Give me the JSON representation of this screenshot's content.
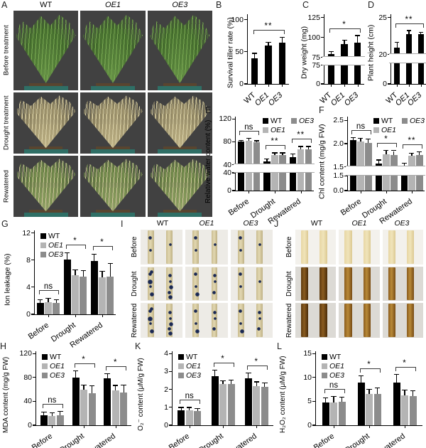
{
  "figure": {
    "genotypes": [
      {
        "label": "WT",
        "color": "#000000",
        "italic": false
      },
      {
        "label": "OE1",
        "color": "#b4b4b4",
        "italic": true
      },
      {
        "label": "OE3",
        "color": "#8c8c8c",
        "italic": true
      }
    ],
    "conditions": [
      "Before",
      "Drought",
      "Rewatered"
    ]
  },
  "panels": {
    "A": {
      "label": "A",
      "col_headers": [
        "WT",
        "OE1",
        "OE3"
      ],
      "row_labels": [
        "Before treatment",
        "Drought treatment",
        "Rewatered"
      ],
      "row_styles": [
        "green",
        "dry",
        "rew"
      ]
    },
    "B": {
      "label": "B"
    },
    "C": {
      "label": "C"
    },
    "D": {
      "label": "D"
    },
    "E": {
      "label": "E"
    },
    "F": {
      "label": "F"
    },
    "G": {
      "label": "G"
    },
    "H": {
      "label": "H"
    },
    "I": {
      "label": "I",
      "col_headers": [
        "WT",
        "OE1",
        "OE3"
      ],
      "row_labels": [
        "Before",
        "Drought",
        "Rewatered"
      ],
      "stain_levels": [
        [
          1,
          1,
          1
        ],
        [
          3,
          2,
          1
        ],
        [
          3,
          2,
          2
        ]
      ]
    },
    "J": {
      "label": "J",
      "col_headers": [
        "WT",
        "OE1",
        "OE3"
      ],
      "row_labels": [
        "Before",
        "Drought",
        "Rewatered"
      ],
      "stain_levels": [
        [
          0,
          0,
          0
        ],
        [
          3,
          2,
          2
        ],
        [
          3,
          2,
          2
        ]
      ]
    },
    "K": {
      "label": "K"
    },
    "L": {
      "label": "L"
    }
  },
  "chart_data": [
    {
      "panel": "B",
      "type": "bar",
      "ylabel": "Survival tiller rate (%)",
      "categories": [
        "WT",
        "OE1",
        "OE3"
      ],
      "cat_italic": [
        false,
        true,
        true
      ],
      "series": [
        {
          "name": "",
          "color": "#000000",
          "values": [
            40,
            60,
            64
          ],
          "errors": [
            7,
            4,
            8
          ]
        }
      ],
      "ymap": [
        [
          0,
          0
        ],
        [
          100,
          0.92
        ]
      ],
      "yticks": [
        {
          "label": "0",
          "v": 0
        },
        {
          "label": "50",
          "v": 50
        },
        {
          "label": "100",
          "v": 100
        }
      ],
      "annotations": [
        {
          "span": "all",
          "text": "**"
        }
      ]
    },
    {
      "panel": "C",
      "type": "bar",
      "ylabel": "Dry weight (mg)",
      "categories": [
        "WT",
        "OE1",
        "OE3"
      ],
      "cat_italic": [
        false,
        true,
        true
      ],
      "series": [
        {
          "name": "",
          "color": "#000000",
          "values": [
            79,
            92,
            94
          ],
          "errors": [
            3,
            4,
            8
          ]
        }
      ],
      "ymap": [
        [
          0,
          0
        ],
        [
          75,
          0.27
        ],
        [
          75,
          0.38
        ],
        [
          125,
          0.95
        ]
      ],
      "break_f": [
        0.27,
        0.38
      ],
      "yticks": [
        {
          "label": "0",
          "v": 0
        },
        {
          "label": "75",
          "f": 0.27
        },
        {
          "label": "75",
          "f": 0.38
        },
        {
          "label": "100",
          "v": 100
        },
        {
          "label": "125",
          "v": 125
        }
      ],
      "annotations": [
        {
          "span": "all",
          "text": "*"
        }
      ]
    },
    {
      "panel": "D",
      "type": "bar",
      "ylabel": "Plant height (cm)",
      "categories": [
        "WT",
        "OE1",
        "OE3"
      ],
      "cat_italic": [
        false,
        true,
        true
      ],
      "series": [
        {
          "name": "",
          "color": "#000000",
          "values": [
            21,
            22.8,
            22.8
          ],
          "errors": [
            0.6,
            0.4,
            0.2
          ]
        }
      ],
      "ymap": [
        [
          0,
          0
        ],
        [
          20,
          0.3
        ],
        [
          20,
          0.42
        ],
        [
          25,
          0.95
        ]
      ],
      "break_f": [
        0.3,
        0.42
      ],
      "yticks": [
        {
          "label": "0",
          "v": 0
        },
        {
          "label": "20",
          "f": 0.42
        },
        {
          "label": "25",
          "v": 25
        }
      ],
      "annotations": [
        {
          "span": "all",
          "text": "**"
        }
      ]
    },
    {
      "panel": "E",
      "type": "bar",
      "ylabel": "Relative water content (%)",
      "categories": [
        "Before",
        "Drought",
        "Rewatered"
      ],
      "series": [
        {
          "name": "WT",
          "values": [
            80,
            46,
            53
          ],
          "errors": [
            2,
            3,
            5
          ]
        },
        {
          "name": "OE1",
          "values": [
            82,
            57,
            67
          ],
          "errors": [
            3,
            3,
            4
          ]
        },
        {
          "name": "OE3",
          "values": [
            79,
            57,
            67
          ],
          "errors": [
            2,
            3,
            4
          ]
        }
      ],
      "ymap": [
        [
          0,
          0
        ],
        [
          40,
          0.24
        ],
        [
          40,
          0.35
        ],
        [
          120,
          0.97
        ]
      ],
      "break_f": [
        0.24,
        0.35
      ],
      "yticks": [
        {
          "label": "0",
          "v": 0
        },
        {
          "label": "40",
          "f": 0.24
        },
        {
          "label": "40",
          "f": 0.35
        },
        {
          "label": "80",
          "v": 80
        },
        {
          "label": "120",
          "v": 120
        }
      ],
      "annotations": [
        {
          "group": 0,
          "text": "ns"
        },
        {
          "group": 1,
          "text": "**"
        },
        {
          "group": 2,
          "text": "**"
        }
      ],
      "legend": {
        "mode": "grid2",
        "items": [
          "WT",
          "OE3",
          "OE1"
        ]
      }
    },
    {
      "panel": "F",
      "type": "bar",
      "ylabel": "Chl content (mg/g FW)",
      "categories": [
        "Before",
        "Drought",
        "Rewatered"
      ],
      "series": [
        {
          "name": "WT",
          "values": [
            2.07,
            1.58,
            1.53
          ],
          "errors": [
            0.05,
            0.06,
            0.04
          ]
        },
        {
          "name": "OE1",
          "values": [
            2.05,
            1.77,
            1.74
          ],
          "errors": [
            0.06,
            0.07,
            0.04
          ]
        },
        {
          "name": "OE3",
          "values": [
            2.02,
            1.76,
            1.76
          ],
          "errors": [
            0.07,
            0.08,
            0.05
          ]
        }
      ],
      "ymap": [
        [
          0,
          0
        ],
        [
          1.5,
          0.2
        ],
        [
          1.5,
          0.32
        ],
        [
          2.5,
          0.95
        ]
      ],
      "break_f": [
        0.2,
        0.32
      ],
      "yticks": [
        {
          "label": "0.0",
          "v": 0
        },
        {
          "label": "1.5",
          "f": 0.2
        },
        {
          "label": "1.5",
          "f": 0.32
        },
        {
          "label": "2.0",
          "v": 2.0
        },
        {
          "label": "2.5",
          "v": 2.5
        }
      ],
      "annotations": [
        {
          "group": 0,
          "text": "ns"
        },
        {
          "group": 1,
          "text": "*"
        },
        {
          "group": 2,
          "text": "**"
        }
      ],
      "legend": {
        "mode": "grid2",
        "items": [
          "WT",
          "OE3",
          "OE1"
        ]
      }
    },
    {
      "panel": "G",
      "type": "bar",
      "ylabel": "Ion leakage (%)",
      "categories": [
        "Before",
        "Drought",
        "Rewatered"
      ],
      "series": [
        {
          "name": "WT",
          "values": [
            1.7,
            8.1,
            7.9
          ],
          "errors": [
            0.4,
            0.9,
            0.9
          ]
        },
        {
          "name": "OE1",
          "values": [
            1.8,
            5.8,
            5.5
          ],
          "errors": [
            0.5,
            0.7,
            0.8
          ]
        },
        {
          "name": "OE3",
          "values": [
            1.7,
            5.6,
            5.6
          ],
          "errors": [
            0.4,
            0.8,
            1.8
          ]
        }
      ],
      "ymap": [
        [
          0,
          0
        ],
        [
          12,
          0.97
        ]
      ],
      "yticks": [
        {
          "label": "0",
          "v": 0
        },
        {
          "label": "4",
          "v": 4
        },
        {
          "label": "8",
          "v": 8
        },
        {
          "label": "12",
          "v": 12
        }
      ],
      "annotations": [
        {
          "group": 0,
          "text": "ns"
        },
        {
          "group": 1,
          "text": "*"
        },
        {
          "group": 2,
          "text": "*"
        }
      ],
      "legend": {
        "mode": "stack",
        "items": [
          "WT",
          "OE1",
          "OE3"
        ]
      }
    },
    {
      "panel": "H",
      "type": "bar",
      "ylabel": "MDA content (mg/g FW)",
      "categories": [
        "Before",
        "Drought",
        "Rewatered"
      ],
      "series": [
        {
          "name": "WT",
          "values": [
            17,
            80,
            78
          ],
          "errors": [
            4,
            10,
            8
          ]
        },
        {
          "name": "OE1",
          "values": [
            15,
            60,
            58
          ],
          "errors": [
            5,
            7,
            8
          ]
        },
        {
          "name": "OE3",
          "values": [
            17,
            53,
            55
          ],
          "errors": [
            6,
            12,
            12
          ]
        }
      ],
      "ymap": [
        [
          0,
          0
        ],
        [
          120,
          0.97
        ]
      ],
      "yticks": [
        {
          "label": "0",
          "v": 0
        },
        {
          "label": "40",
          "v": 40
        },
        {
          "label": "80",
          "v": 80
        },
        {
          "label": "120",
          "v": 120
        }
      ],
      "annotations": [
        {
          "group": 0,
          "text": "ns"
        },
        {
          "group": 1,
          "text": "*"
        },
        {
          "group": 2,
          "text": "*"
        }
      ],
      "legend": {
        "mode": "stack",
        "items": [
          "WT",
          "OE1",
          "OE3"
        ]
      }
    },
    {
      "panel": "K",
      "type": "bar",
      "ylabel": "O₂⁻ content (μM/g FW)",
      "categories": [
        "Before",
        "Drought",
        "Rewatered"
      ],
      "series": [
        {
          "name": "WT",
          "values": [
            0.85,
            2.75,
            2.6
          ],
          "errors": [
            0.12,
            0.3,
            0.3
          ]
        },
        {
          "name": "OE1",
          "values": [
            0.85,
            2.3,
            2.2
          ],
          "errors": [
            0.12,
            0.15,
            0.2
          ]
        },
        {
          "name": "OE3",
          "values": [
            0.8,
            2.3,
            2.15
          ],
          "errors": [
            0.12,
            0.2,
            0.2
          ]
        }
      ],
      "ymap": [
        [
          0,
          0
        ],
        [
          4,
          0.97
        ]
      ],
      "yticks": [
        {
          "label": "0",
          "v": 0
        },
        {
          "label": "1",
          "v": 1
        },
        {
          "label": "2",
          "v": 2
        },
        {
          "label": "3",
          "v": 3
        },
        {
          "label": "4",
          "v": 4
        }
      ],
      "annotations": [
        {
          "group": 0,
          "text": "ns"
        },
        {
          "group": 1,
          "text": "*"
        },
        {
          "group": 2,
          "text": "*"
        }
      ],
      "legend": {
        "mode": "stack",
        "items": [
          "WT",
          "OE1",
          "OE3"
        ]
      }
    },
    {
      "panel": "L",
      "type": "bar",
      "ylabel": "H₂O₂ content (μM/g FW)",
      "categories": [
        "Before",
        "Drought",
        "Rewatered"
      ],
      "series": [
        {
          "name": "WT",
          "values": [
            4.8,
            9.0,
            9.0
          ],
          "errors": [
            0.8,
            1.3,
            1.5
          ]
        },
        {
          "name": "OE1",
          "values": [
            4.7,
            6.5,
            6.3
          ],
          "errors": [
            1.2,
            0.9,
            1.0
          ]
        },
        {
          "name": "OE3",
          "values": [
            4.9,
            6.6,
            6.1
          ],
          "errors": [
            0.9,
            1.1,
            1.0
          ]
        }
      ],
      "ymap": [
        [
          0,
          0
        ],
        [
          15,
          0.97
        ]
      ],
      "yticks": [
        {
          "label": "0",
          "v": 0
        },
        {
          "label": "5",
          "v": 5
        },
        {
          "label": "10",
          "v": 10
        },
        {
          "label": "15",
          "v": 15
        }
      ],
      "annotations": [
        {
          "group": 0,
          "text": "ns"
        },
        {
          "group": 1,
          "text": "*"
        },
        {
          "group": 2,
          "text": "*"
        }
      ],
      "legend": {
        "mode": "stack",
        "items": [
          "WT",
          "OE1",
          "OE3"
        ]
      }
    }
  ]
}
